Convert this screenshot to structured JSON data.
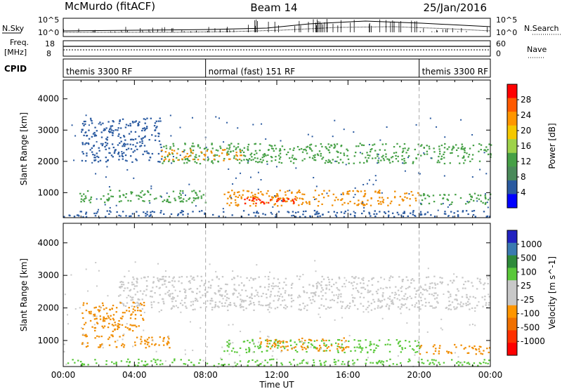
{
  "header": {
    "title": "McMurdo (fitACF)",
    "beam": "Beam 14",
    "date": "25/Jan/2016"
  },
  "status_panels": {
    "nsky_label": "N.Sky",
    "nsearch_label": "N.Search",
    "nsky_ticks": [
      "10^5",
      "10^0"
    ],
    "nsearch_ticks": [
      "10^5",
      "10^0"
    ],
    "freq_label_line1": "Freq.",
    "freq_label_line2": "[MHz]",
    "freq_ticks": [
      "18",
      "8"
    ],
    "nave_label": "Nave",
    "nave_ticks": [
      "60",
      "0"
    ],
    "cpid_label": "CPID",
    "cpid_segments": [
      {
        "label": "themis 3300 RF",
        "start_h": 0,
        "end_h": 8
      },
      {
        "label": "normal (fast) 151 RF",
        "start_h": 8,
        "end_h": 20
      },
      {
        "label": "themis 3300 RF",
        "start_h": 20,
        "end_h": 24
      }
    ]
  },
  "chart_data": [
    {
      "type": "heatmap",
      "name": "power",
      "ylabel": "Slant Range [km]",
      "x_range_h": [
        0,
        24
      ],
      "ylim": [
        200,
        4600
      ],
      "yticks": [
        "1000",
        "2000",
        "3000",
        "4000"
      ],
      "colorbar_label": "Power [dB]",
      "colorbar_ticks": [
        "28",
        "24",
        "20",
        "16",
        "12",
        "8",
        "4"
      ],
      "colorbar_colors": [
        "#ff0000",
        "#ff5a00",
        "#ff9600",
        "#f5c800",
        "#9ed24a",
        "#46a046",
        "#4a8a5a",
        "#2a5aa0",
        "#0000ff"
      ],
      "bands": [
        {
          "t0": 1.0,
          "t1": 5.5,
          "r0": 2000,
          "r1": 3400,
          "color": "#2a5aa0"
        },
        {
          "t0": 5.5,
          "t1": 24.0,
          "r0": 1950,
          "r1": 2600,
          "color": "#46a046"
        },
        {
          "t0": 5.5,
          "t1": 10.0,
          "r0": 2050,
          "r1": 2400,
          "color": "#f08c00"
        },
        {
          "t0": 0.8,
          "t1": 8.0,
          "r0": 700,
          "r1": 1100,
          "color": "#46a046"
        },
        {
          "t0": 9.0,
          "t1": 20.0,
          "r0": 600,
          "r1": 1100,
          "color": "#f08c00"
        },
        {
          "t0": 10.0,
          "t1": 13.0,
          "r0": 650,
          "r1": 900,
          "color": "#ff2000"
        },
        {
          "t0": 20.0,
          "t1": 24.0,
          "r0": 650,
          "r1": 1000,
          "color": "#46a046"
        },
        {
          "t0": 0.0,
          "t1": 24.0,
          "r0": 250,
          "r1": 450,
          "color": "#2a5aa0"
        }
      ]
    },
    {
      "type": "heatmap",
      "name": "velocity",
      "ylabel": "Slant Range [km]",
      "xlabel": "Time UT",
      "x_range_h": [
        0,
        24
      ],
      "ylim": [
        200,
        4600
      ],
      "yticks": [
        "1000",
        "2000",
        "3000",
        "4000"
      ],
      "xticks": [
        "00:00",
        "04:00",
        "08:00",
        "12:00",
        "16:00",
        "20:00",
        "00:00"
      ],
      "colorbar_label": "Velocity [m s^-1]",
      "colorbar_ticks": [
        "1000",
        "500",
        "100",
        "25",
        "-25",
        "-100",
        "-500",
        "-1000"
      ],
      "colorbar_colors": [
        "#2222c0",
        "#3a7ab0",
        "#2e8a3a",
        "#5ac83a",
        "#c8c8c8",
        "#c8c8c8",
        "#ff9600",
        "#f07000",
        "#ff3000",
        "#ff0000"
      ],
      "bands": [
        {
          "t0": 3.0,
          "t1": 24.0,
          "r0": 1950,
          "r1": 3000,
          "color": "#c8c8c8"
        },
        {
          "t0": 1.0,
          "t1": 4.5,
          "r0": 1300,
          "r1": 2200,
          "color": "#f08c00"
        },
        {
          "t0": 1.0,
          "t1": 6.0,
          "r0": 800,
          "r1": 1200,
          "color": "#f08c00"
        },
        {
          "t0": 9.0,
          "t1": 20.0,
          "r0": 650,
          "r1": 1050,
          "color": "#5ac83a"
        },
        {
          "t0": 11.0,
          "t1": 16.0,
          "r0": 700,
          "r1": 1100,
          "color": "#f08c00"
        },
        {
          "t0": 20.0,
          "t1": 24.0,
          "r0": 600,
          "r1": 900,
          "color": "#f08c00"
        },
        {
          "t0": 0.0,
          "t1": 24.0,
          "r0": 250,
          "r1": 450,
          "color": "#5ac83a"
        }
      ]
    }
  ]
}
